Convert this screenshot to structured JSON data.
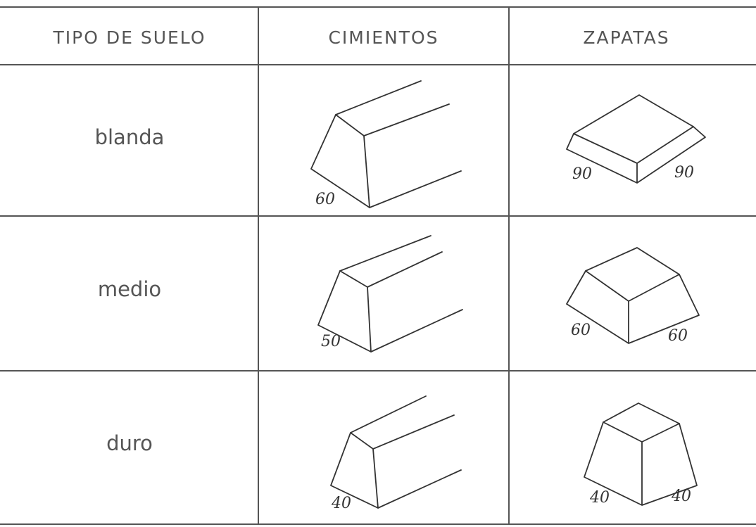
{
  "table": {
    "header": [
      "TIPO DE SUELO",
      "CIMIENTOS",
      "ZAPATAS"
    ],
    "rows": [
      {
        "suelo": "blanda",
        "cimiento": 60,
        "zapata": [
          90,
          90
        ]
      },
      {
        "suelo": "medio",
        "cimiento": 50,
        "zapata": [
          60,
          60
        ]
      },
      {
        "suelo": "duro",
        "cimiento": 40,
        "zapata": [
          40,
          40
        ]
      }
    ]
  }
}
